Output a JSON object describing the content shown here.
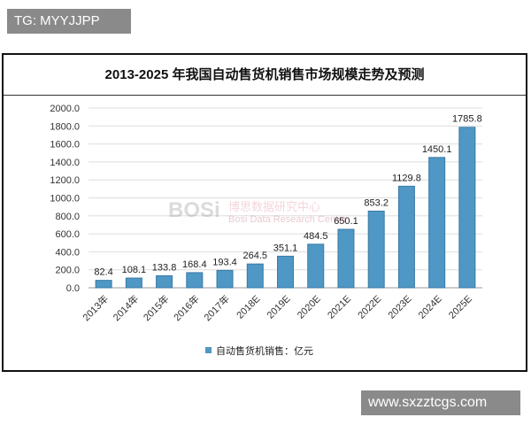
{
  "badges": {
    "top_left": "TG: MYYJJPP",
    "bottom_right": "www.sxzztcgs.com"
  },
  "watermark": {
    "logo": "BOSi",
    "cn": "博思数据研究中心",
    "en": "Bosi Data Research Center"
  },
  "chart_data": {
    "type": "bar",
    "title": "2013-2025 年我国自动售货机销售市场规模走势及预测",
    "categories": [
      "2013年",
      "2014年",
      "2015年",
      "2016年",
      "2017年",
      "2018E",
      "2019E",
      "2020E",
      "2021E",
      "2022E",
      "2023E",
      "2024E",
      "2025E"
    ],
    "series": [
      {
        "name": "自动售货机销售：亿元",
        "values": [
          82.4,
          108.1,
          133.8,
          168.4,
          193.4,
          264.5,
          351.1,
          484.5,
          650.1,
          853.2,
          1129.8,
          1450.1,
          1785.8
        ]
      }
    ],
    "ylim": [
      0,
      2000
    ],
    "yticks": [
      "0.0",
      "200.0",
      "400.0",
      "600.0",
      "800.0",
      "1000.0",
      "1200.0",
      "1400.0",
      "1600.0",
      "1800.0",
      "2000.0"
    ],
    "grid": true,
    "legend": "bottom",
    "colors": {
      "bar": "#4f97c4"
    }
  }
}
